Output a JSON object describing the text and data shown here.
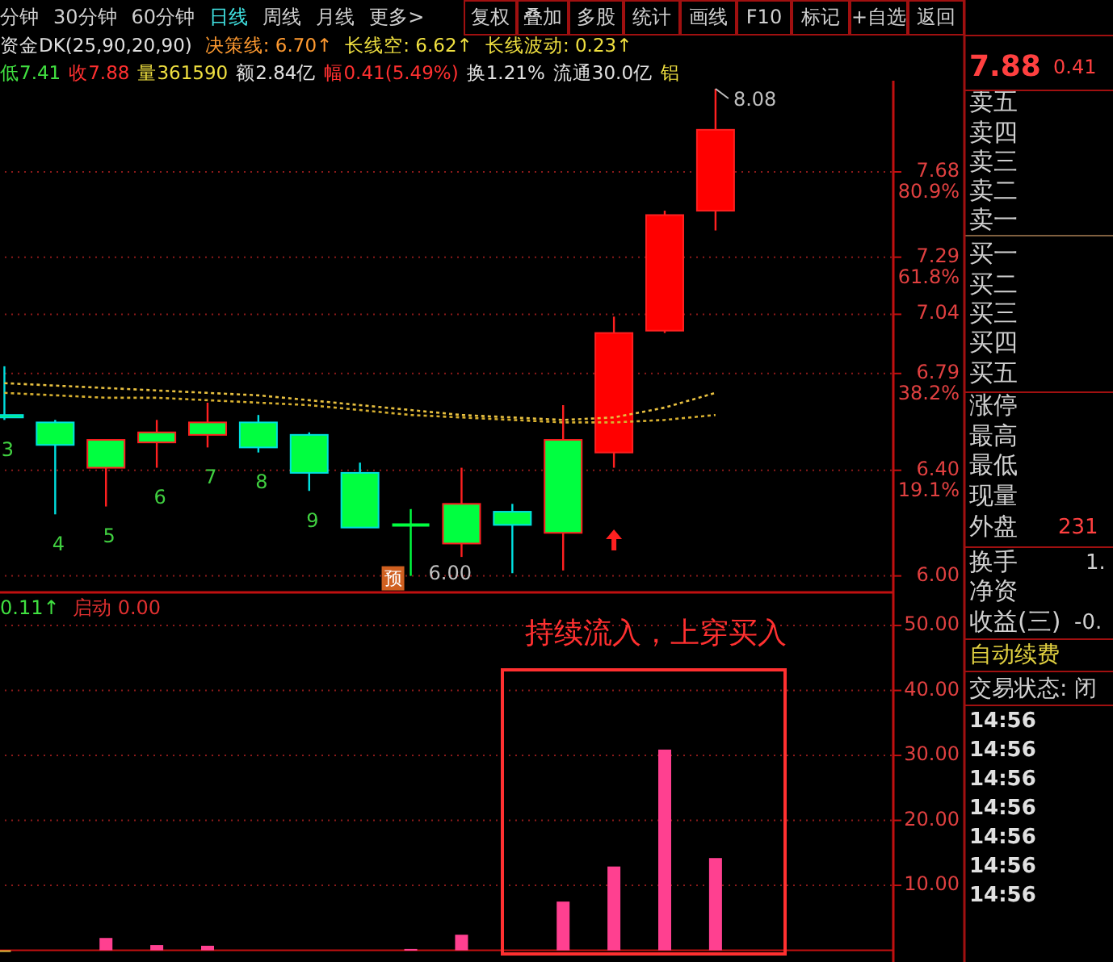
{
  "chart_data": [
    {
      "type": "candlestick",
      "categories": [
        null,
        null,
        null,
        null,
        null,
        null,
        null,
        null,
        null,
        null,
        null,
        null,
        null,
        null,
        null,
        null,
        null,
        null
      ],
      "ohlc": [
        [
          6.62,
          6.82,
          6.6,
          6.61
        ],
        [
          6.59,
          6.6,
          6.23,
          6.5
        ],
        [
          6.41,
          6.52,
          6.26,
          6.52
        ],
        [
          6.51,
          6.6,
          6.41,
          6.55
        ],
        [
          6.54,
          6.67,
          6.49,
          6.59
        ],
        [
          6.59,
          6.62,
          6.47,
          6.49
        ],
        [
          6.54,
          6.55,
          6.32,
          6.39
        ],
        [
          6.39,
          6.43,
          6.18,
          6.18
        ],
        [
          6.19,
          6.25,
          6.0,
          6.19
        ],
        [
          6.12,
          6.41,
          6.07,
          6.27
        ],
        [
          6.24,
          6.27,
          6.01,
          6.19
        ],
        [
          6.16,
          6.66,
          6.02,
          6.52
        ],
        [
          6.47,
          7.03,
          6.41,
          6.96
        ],
        [
          6.97,
          7.5,
          6.96,
          7.48
        ],
        [
          7.5,
          8.08,
          7.41,
          7.88
        ],
        null,
        null,
        null
      ],
      "colors": [
        "#00ff40",
        "#00ff40",
        "#00ff40",
        "#00ff40",
        "#00ff40",
        "#00ff40",
        "#00ff40",
        "#00ff40",
        "#00ff40",
        "#00ff40",
        "#00ff40",
        "#00ff40",
        "#ff0000",
        "#ff0000",
        "#ff0000",
        null,
        null,
        null
      ],
      "value_labels": [
        "3",
        "4",
        "5",
        "6",
        "7",
        "8",
        "9",
        null,
        null,
        null,
        null,
        null,
        null,
        null,
        null,
        null,
        null,
        null
      ],
      "series": [
        {
          "type": "line",
          "color": "#e8c040",
          "line_style": "dotted",
          "values": [
            6.75,
            6.74,
            6.73,
            6.72,
            6.71,
            6.7,
            6.68,
            6.66,
            6.64,
            6.62,
            6.61,
            6.6,
            6.61,
            6.65,
            6.71,
            null,
            null,
            null
          ]
        },
        {
          "type": "line",
          "color": "#d8b030",
          "line_style": "dotted",
          "values": [
            6.71,
            6.7,
            6.69,
            6.69,
            6.68,
            6.67,
            6.66,
            6.64,
            6.62,
            6.61,
            6.6,
            6.59,
            6.59,
            6.6,
            6.62,
            null,
            null,
            null
          ]
        }
      ],
      "log": true,
      "ylim": [
        5.94,
        8.12
      ],
      "yticks": [
        {
          "value": 6,
          "label": "6.00"
        },
        {
          "value": 6.4,
          "label": "6.40 19.1%"
        },
        {
          "value": 6.79,
          "label": "6.79 38.2%"
        },
        {
          "value": 7.04,
          "label": "7.04"
        },
        {
          "value": 7.29,
          "label": "7.29 61.8%"
        },
        {
          "value": 7.68,
          "label": "7.68 80.9%"
        }
      ],
      "grid": "y",
      "annotations": [
        "8.08",
        "6.00",
        "预",
        "资金DK(25,90,20,90)",
        "决策线: 6.70↑",
        "长线空: 6.62↑",
        "长线波动: 0.23↑",
        "低7.41",
        "收7.88",
        "量361590",
        "额2.84亿",
        "幅0.41(5.49%)",
        "换1.21%",
        "流通30.0亿",
        "铝"
      ]
    },
    {
      "type": "bar",
      "categories": [
        null,
        null,
        null,
        null,
        null,
        null,
        null,
        null,
        null,
        null,
        null,
        null,
        null,
        null,
        null,
        null,
        null,
        null
      ],
      "values": [
        0,
        null,
        1.9,
        0.8,
        0.7,
        null,
        null,
        null,
        0.2,
        2.4,
        null,
        7.5,
        12.9,
        30.9,
        14.2,
        null,
        null,
        null
      ],
      "colors": [
        "#e8c040",
        null,
        "#ff4090",
        "#ff4090",
        "#ff4090",
        null,
        null,
        null,
        "#ff4090",
        "#ff4090",
        null,
        "#ff4090",
        "#ff4090",
        "#ff4090",
        "#ff4090",
        null,
        null,
        null
      ],
      "ylim": [
        -1.8,
        55.1
      ],
      "yticks": [
        {
          "value": 10,
          "label": "10.00"
        },
        {
          "value": 20,
          "label": "20.00"
        },
        {
          "value": 30,
          "label": "30.00"
        },
        {
          "value": 40,
          "label": "40.00"
        },
        {
          "value": 50,
          "label": "50.00"
        }
      ],
      "ref_lines": [
        {
          "axis": "y",
          "value": 0,
          "color": "#c01010"
        }
      ],
      "grid": "y",
      "annotations": [
        "0.11↑",
        "启动 0.00",
        "持续流入，上穿买入"
      ]
    },
    {
      "type": "other",
      "annotations": [
        "分钟",
        "30分钟",
        "60分钟",
        "日线",
        "周线",
        "月线",
        "更多>",
        "复权",
        "叠加",
        "多股",
        "统计",
        "画线",
        "F10",
        "标记",
        "+自选",
        "返回",
        "7.88",
        "0.41",
        "卖五",
        "卖四",
        "卖三",
        "卖二",
        "卖一",
        "买一",
        "买二",
        "买三",
        "买四",
        "买五",
        "涨停",
        "最高",
        "最低",
        "现量",
        "外盘",
        "231",
        "换手",
        "1.",
        "净资",
        "收益(三)",
        "-0.",
        "自动续费",
        "交易状态: 闭",
        "14:56",
        "14:56",
        "14:56",
        "14:56",
        "14:56",
        "14:56",
        "14:56"
      ]
    }
  ]
}
